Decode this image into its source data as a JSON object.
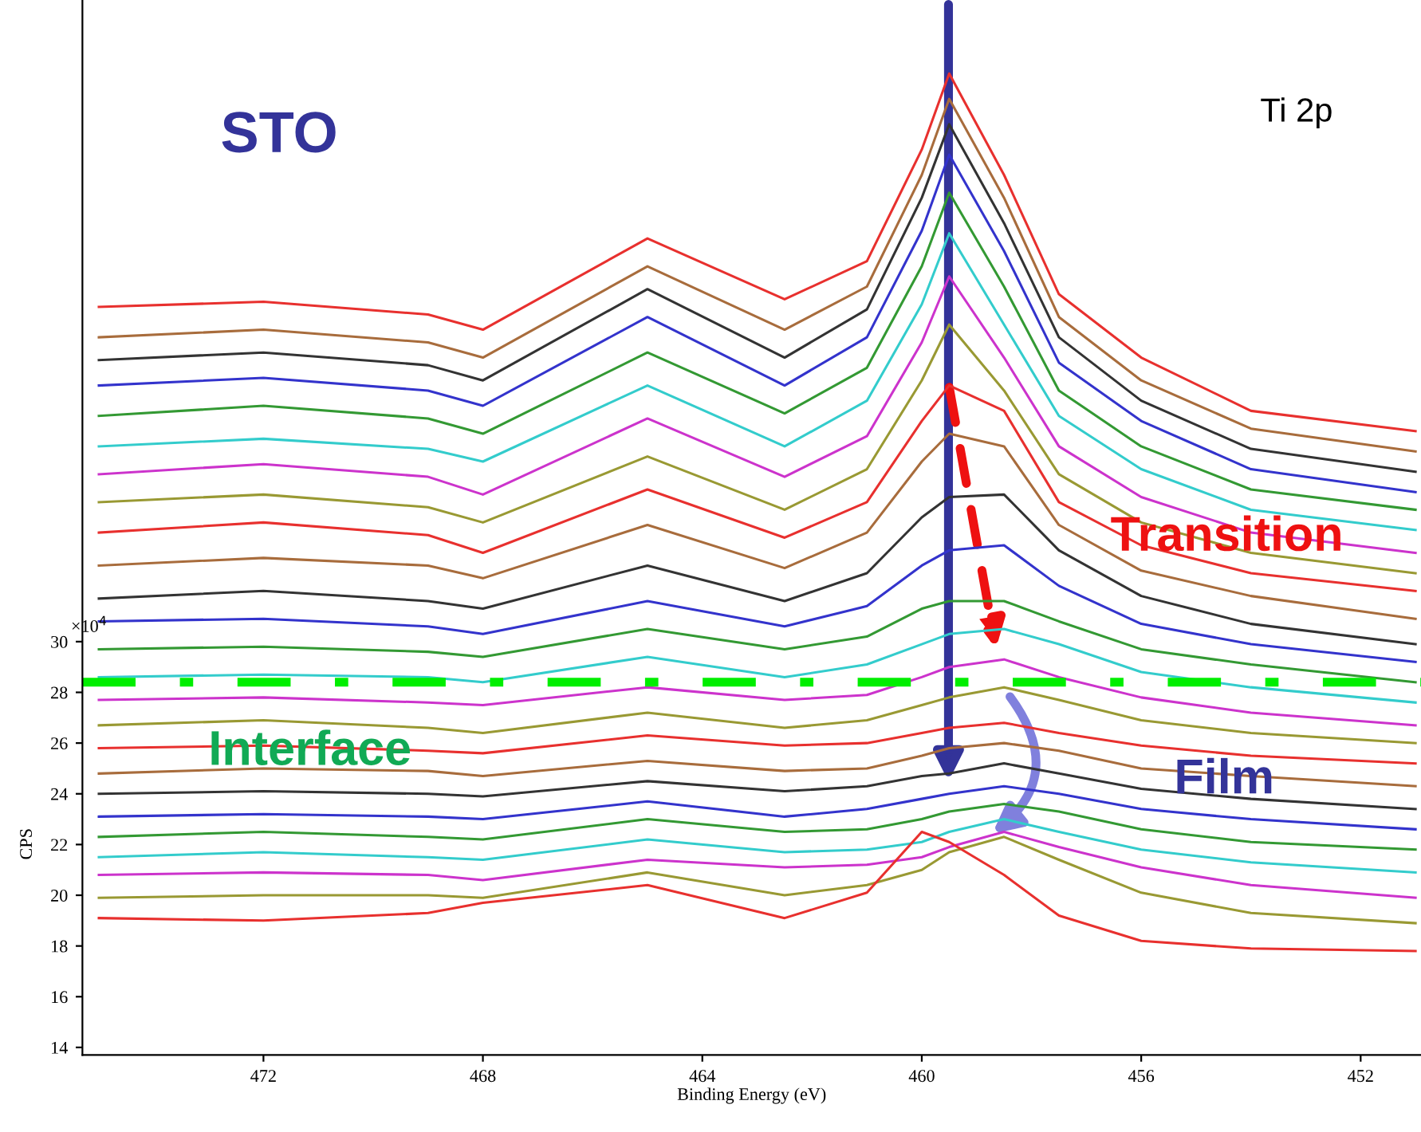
{
  "chart_data": {
    "type": "line",
    "xlabel": "Binding Energy (eV)",
    "ylabel": "CPS",
    "x": [
      475,
      472,
      469,
      468,
      465,
      462.5,
      461,
      460,
      459.5,
      458.5,
      457.5,
      456,
      454,
      451
    ],
    "xlim": [
      475.3,
      450.9
    ],
    "ylim": [
      13.7,
      55.3
    ],
    "xticks": [
      472,
      468,
      464,
      460,
      456,
      452
    ],
    "yticks": [
      14,
      16,
      18,
      20,
      22,
      24,
      26,
      28,
      30
    ],
    "grid": false,
    "legend": false,
    "marker": "none",
    "line_style": "solid",
    "annotations": [
      "STO",
      "Ti 2p",
      "Transition",
      "Interface",
      "Film",
      "×10$^{4}$"
    ],
    "ref_lines": [
      {
        "axis": "y",
        "value": 28.4,
        "color": "#00ee00",
        "line_style": "dashed"
      }
    ],
    "series": [
      {
        "color": "#e8302e",
        "values": [
          43.2,
          43.4,
          42.9,
          42.3,
          45.9,
          43.5,
          45.0,
          49.4,
          52.4,
          48.4,
          43.7,
          41.2,
          39.1,
          38.3
        ]
      },
      {
        "color": "#a86c3c",
        "values": [
          42.0,
          42.3,
          41.8,
          41.2,
          44.8,
          42.3,
          44.0,
          48.4,
          51.4,
          47.5,
          42.8,
          40.3,
          38.4,
          37.5
        ]
      },
      {
        "color": "#333333",
        "values": [
          41.1,
          41.4,
          40.9,
          40.3,
          43.9,
          41.2,
          43.1,
          47.5,
          50.4,
          46.5,
          42.0,
          39.5,
          37.6,
          36.7
        ]
      },
      {
        "color": "#3333cc",
        "values": [
          40.1,
          40.4,
          39.9,
          39.3,
          42.8,
          40.1,
          42.0,
          46.2,
          49.2,
          45.4,
          41.0,
          38.7,
          36.8,
          35.9
        ]
      },
      {
        "color": "#339933",
        "values": [
          38.9,
          39.3,
          38.8,
          38.2,
          41.4,
          39.0,
          40.8,
          44.8,
          47.7,
          44.0,
          39.9,
          37.7,
          36.0,
          35.2
        ]
      },
      {
        "color": "#33cccc",
        "values": [
          37.7,
          38.0,
          37.6,
          37.1,
          40.1,
          37.7,
          39.5,
          43.3,
          46.1,
          42.5,
          38.9,
          36.8,
          35.2,
          34.4
        ]
      },
      {
        "color": "#cc33cc",
        "values": [
          36.6,
          37.0,
          36.5,
          35.8,
          38.8,
          36.5,
          38.1,
          41.8,
          44.4,
          41.2,
          37.7,
          35.7,
          34.3,
          33.5
        ]
      },
      {
        "color": "#999933",
        "values": [
          35.5,
          35.8,
          35.3,
          34.7,
          37.3,
          35.2,
          36.8,
          40.3,
          42.5,
          39.9,
          36.6,
          34.7,
          33.5,
          32.7
        ]
      },
      {
        "color": "#e8302e",
        "values": [
          34.3,
          34.7,
          34.2,
          33.5,
          36.0,
          34.1,
          35.5,
          38.7,
          40.1,
          39.1,
          35.5,
          33.8,
          32.7,
          32.0
        ]
      },
      {
        "color": "#a86c3c",
        "values": [
          33.0,
          33.3,
          33.0,
          32.5,
          34.6,
          32.9,
          34.3,
          37.1,
          38.2,
          37.7,
          34.6,
          32.8,
          31.8,
          30.9
        ]
      },
      {
        "color": "#333333",
        "values": [
          31.7,
          32.0,
          31.6,
          31.3,
          33.0,
          31.6,
          32.7,
          34.9,
          35.7,
          35.8,
          33.6,
          31.8,
          30.7,
          29.9
        ]
      },
      {
        "color": "#3333cc",
        "values": [
          30.8,
          30.9,
          30.6,
          30.3,
          31.6,
          30.6,
          31.4,
          33.0,
          33.6,
          33.8,
          32.2,
          30.7,
          29.9,
          29.2
        ]
      },
      {
        "color": "#339933",
        "values": [
          29.7,
          29.8,
          29.6,
          29.4,
          30.5,
          29.7,
          30.2,
          31.3,
          31.6,
          31.6,
          30.8,
          29.7,
          29.1,
          28.4
        ]
      },
      {
        "color": "#33cccc",
        "values": [
          28.6,
          28.7,
          28.6,
          28.4,
          29.4,
          28.6,
          29.1,
          29.9,
          30.3,
          30.5,
          29.9,
          28.8,
          28.2,
          27.6
        ]
      },
      {
        "color": "#cc33cc",
        "values": [
          27.7,
          27.8,
          27.6,
          27.5,
          28.2,
          27.7,
          27.9,
          28.6,
          29.0,
          29.3,
          28.6,
          27.8,
          27.2,
          26.7
        ]
      },
      {
        "color": "#999933",
        "values": [
          26.7,
          26.9,
          26.6,
          26.4,
          27.2,
          26.6,
          26.9,
          27.5,
          27.8,
          28.2,
          27.7,
          26.9,
          26.4,
          26.0
        ]
      },
      {
        "color": "#e8302e",
        "values": [
          25.8,
          25.9,
          25.7,
          25.6,
          26.3,
          25.9,
          26.0,
          26.4,
          26.6,
          26.8,
          26.4,
          25.9,
          25.5,
          25.2
        ]
      },
      {
        "color": "#a86c3c",
        "values": [
          24.8,
          25.0,
          24.9,
          24.7,
          25.3,
          24.9,
          25.0,
          25.5,
          25.8,
          26.0,
          25.7,
          25.0,
          24.7,
          24.3
        ]
      },
      {
        "color": "#333333",
        "values": [
          24.0,
          24.1,
          24.0,
          23.9,
          24.5,
          24.1,
          24.3,
          24.7,
          24.8,
          25.2,
          24.8,
          24.2,
          23.8,
          23.4
        ]
      },
      {
        "color": "#3333cc",
        "values": [
          23.1,
          23.2,
          23.1,
          23.0,
          23.7,
          23.1,
          23.4,
          23.8,
          24.0,
          24.3,
          24.0,
          23.4,
          23.0,
          22.6
        ]
      },
      {
        "color": "#339933",
        "values": [
          22.3,
          22.5,
          22.3,
          22.2,
          23.0,
          22.5,
          22.6,
          23.0,
          23.3,
          23.6,
          23.3,
          22.6,
          22.1,
          21.8
        ]
      },
      {
        "color": "#33cccc",
        "values": [
          21.5,
          21.7,
          21.5,
          21.4,
          22.2,
          21.7,
          21.8,
          22.1,
          22.5,
          23.0,
          22.5,
          21.8,
          21.3,
          20.9
        ]
      },
      {
        "color": "#cc33cc",
        "values": [
          20.8,
          20.9,
          20.8,
          20.6,
          21.4,
          21.1,
          21.2,
          21.5,
          21.9,
          22.5,
          21.9,
          21.1,
          20.4,
          19.9
        ]
      },
      {
        "color": "#999933",
        "values": [
          19.9,
          20.0,
          20.0,
          19.9,
          20.9,
          20.0,
          20.4,
          21.0,
          21.7,
          22.3,
          21.4,
          20.1,
          19.3,
          18.9
        ]
      },
      {
        "color": "#e8302e",
        "values": [
          19.1,
          19.0,
          19.3,
          19.7,
          20.4,
          19.1,
          20.1,
          22.5,
          22.1,
          20.8,
          19.2,
          18.2,
          17.9,
          17.8
        ]
      }
    ]
  }
}
